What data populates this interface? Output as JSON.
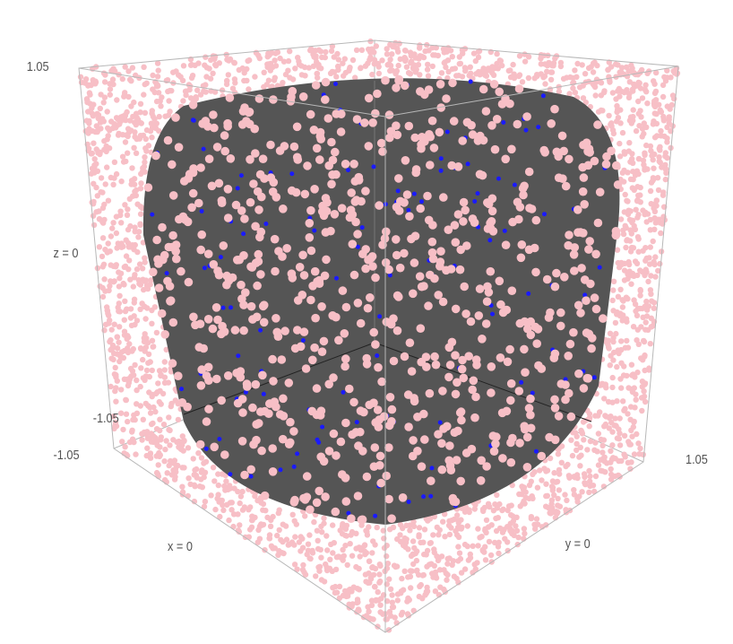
{
  "labels": {
    "z_max": "1.05",
    "z_axis": "z = 0",
    "z_min": "-1.05",
    "x_min": "-1.05",
    "x_axis": "x = 0",
    "y_axis": "y = 0",
    "y_max": "1.05"
  }
}
